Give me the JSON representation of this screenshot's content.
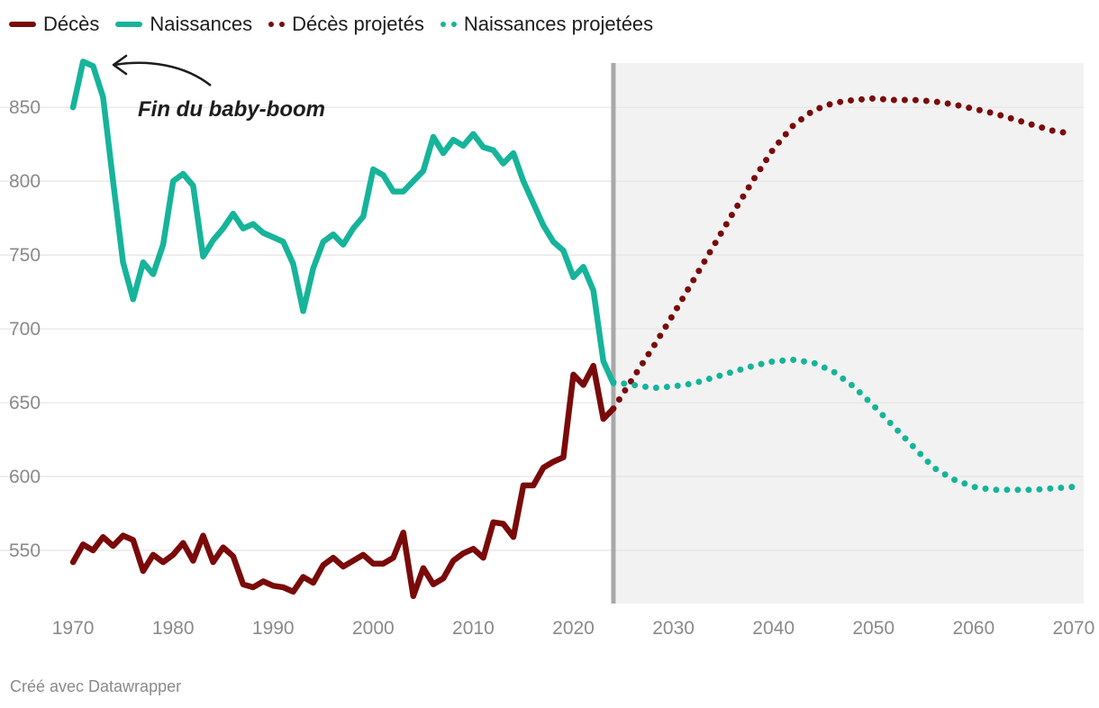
{
  "legend": {
    "deces": "Décès",
    "naissances": "Naissances",
    "deces_proj": "Décès projetés",
    "naissances_proj": "Naissances projetées"
  },
  "annotation": "Fin du baby-boom",
  "credit": "Créé avec Datawrapper",
  "colors": {
    "deaths": "#7a0a0a",
    "births": "#16b49a",
    "grid": "#e4e4e4",
    "projection_bg": "#f2f2f2",
    "divider": "#a8a8a8",
    "tick": "#8a8a8a"
  },
  "chart_data": {
    "type": "line",
    "title": "",
    "xlabel": "",
    "ylabel": "",
    "xlim": [
      1969,
      2071
    ],
    "ylim": [
      514,
      880
    ],
    "x_ticks": [
      1970,
      1980,
      1990,
      2000,
      2010,
      2020,
      2030,
      2040,
      2050,
      2060,
      2070
    ],
    "y_ticks": [
      550,
      600,
      650,
      700,
      750,
      800,
      850
    ],
    "projection_start": 2024,
    "annotation": {
      "text": "Fin du baby-boom",
      "target": [
        1971,
        879
      ]
    },
    "series": [
      {
        "name": "Décès",
        "style": "solid",
        "x": [
          1970,
          1971,
          1972,
          1973,
          1974,
          1975,
          1976,
          1977,
          1978,
          1979,
          1980,
          1981,
          1982,
          1983,
          1984,
          1985,
          1986,
          1987,
          1988,
          1989,
          1990,
          1991,
          1992,
          1993,
          1994,
          1995,
          1996,
          1997,
          1998,
          1999,
          2000,
          2001,
          2002,
          2003,
          2004,
          2005,
          2006,
          2007,
          2008,
          2009,
          2010,
          2011,
          2012,
          2013,
          2014,
          2015,
          2016,
          2017,
          2018,
          2019,
          2020,
          2021,
          2022,
          2023,
          2024
        ],
        "values": [
          542,
          554,
          550,
          559,
          553,
          560,
          557,
          536,
          547,
          542,
          547,
          555,
          543,
          560,
          542,
          552,
          546,
          527,
          525,
          529,
          526,
          525,
          522,
          532,
          528,
          540,
          545,
          539,
          543,
          547,
          541,
          541,
          545,
          562,
          519,
          538,
          527,
          531,
          543,
          548,
          551,
          545,
          569,
          568,
          559,
          594,
          594,
          606,
          610,
          613,
          669,
          662,
          675,
          639,
          646
        ]
      },
      {
        "name": "Naissances",
        "style": "solid",
        "x": [
          1970,
          1971,
          1972,
          1973,
          1974,
          1975,
          1976,
          1977,
          1978,
          1979,
          1980,
          1981,
          1982,
          1983,
          1984,
          1985,
          1986,
          1987,
          1988,
          1989,
          1990,
          1991,
          1992,
          1993,
          1994,
          1995,
          1996,
          1997,
          1998,
          1999,
          2000,
          2001,
          2002,
          2003,
          2004,
          2005,
          2006,
          2007,
          2008,
          2009,
          2010,
          2011,
          2012,
          2013,
          2014,
          2015,
          2016,
          2017,
          2018,
          2019,
          2020,
          2021,
          2022,
          2023,
          2024
        ],
        "values": [
          850,
          881,
          878,
          857,
          800,
          745,
          720,
          745,
          737,
          757,
          800,
          805,
          797,
          749,
          760,
          768,
          778,
          768,
          771,
          765,
          762,
          759,
          744,
          712,
          741,
          759,
          764,
          757,
          768,
          776,
          808,
          804,
          793,
          793,
          800,
          807,
          830,
          819,
          828,
          824,
          832,
          823,
          821,
          812,
          819,
          800,
          785,
          770,
          759,
          753,
          735,
          742,
          726,
          678,
          663
        ]
      },
      {
        "name": "Décès projetés",
        "style": "dotted",
        "x": [
          2024,
          2026,
          2028,
          2030,
          2032,
          2034,
          2036,
          2038,
          2040,
          2042,
          2044,
          2046,
          2048,
          2050,
          2052,
          2054,
          2056,
          2058,
          2060,
          2062,
          2064,
          2066,
          2068,
          2070
        ],
        "values": [
          646,
          667,
          688,
          710,
          733,
          756,
          779,
          801,
          822,
          838,
          848,
          853,
          855,
          856,
          855,
          855,
          854,
          852,
          849,
          846,
          842,
          838,
          834,
          832
        ]
      },
      {
        "name": "Naissances projetées",
        "style": "dotted",
        "x": [
          2024,
          2026,
          2028,
          2030,
          2032,
          2034,
          2036,
          2038,
          2040,
          2042,
          2044,
          2046,
          2048,
          2050,
          2052,
          2054,
          2056,
          2058,
          2060,
          2062,
          2064,
          2066,
          2068,
          2070
        ],
        "values": [
          664,
          662,
          660,
          661,
          663,
          667,
          671,
          675,
          678,
          679,
          677,
          671,
          661,
          648,
          634,
          620,
          606,
          598,
          593,
          591,
          591,
          591,
          592,
          593
        ]
      }
    ]
  }
}
